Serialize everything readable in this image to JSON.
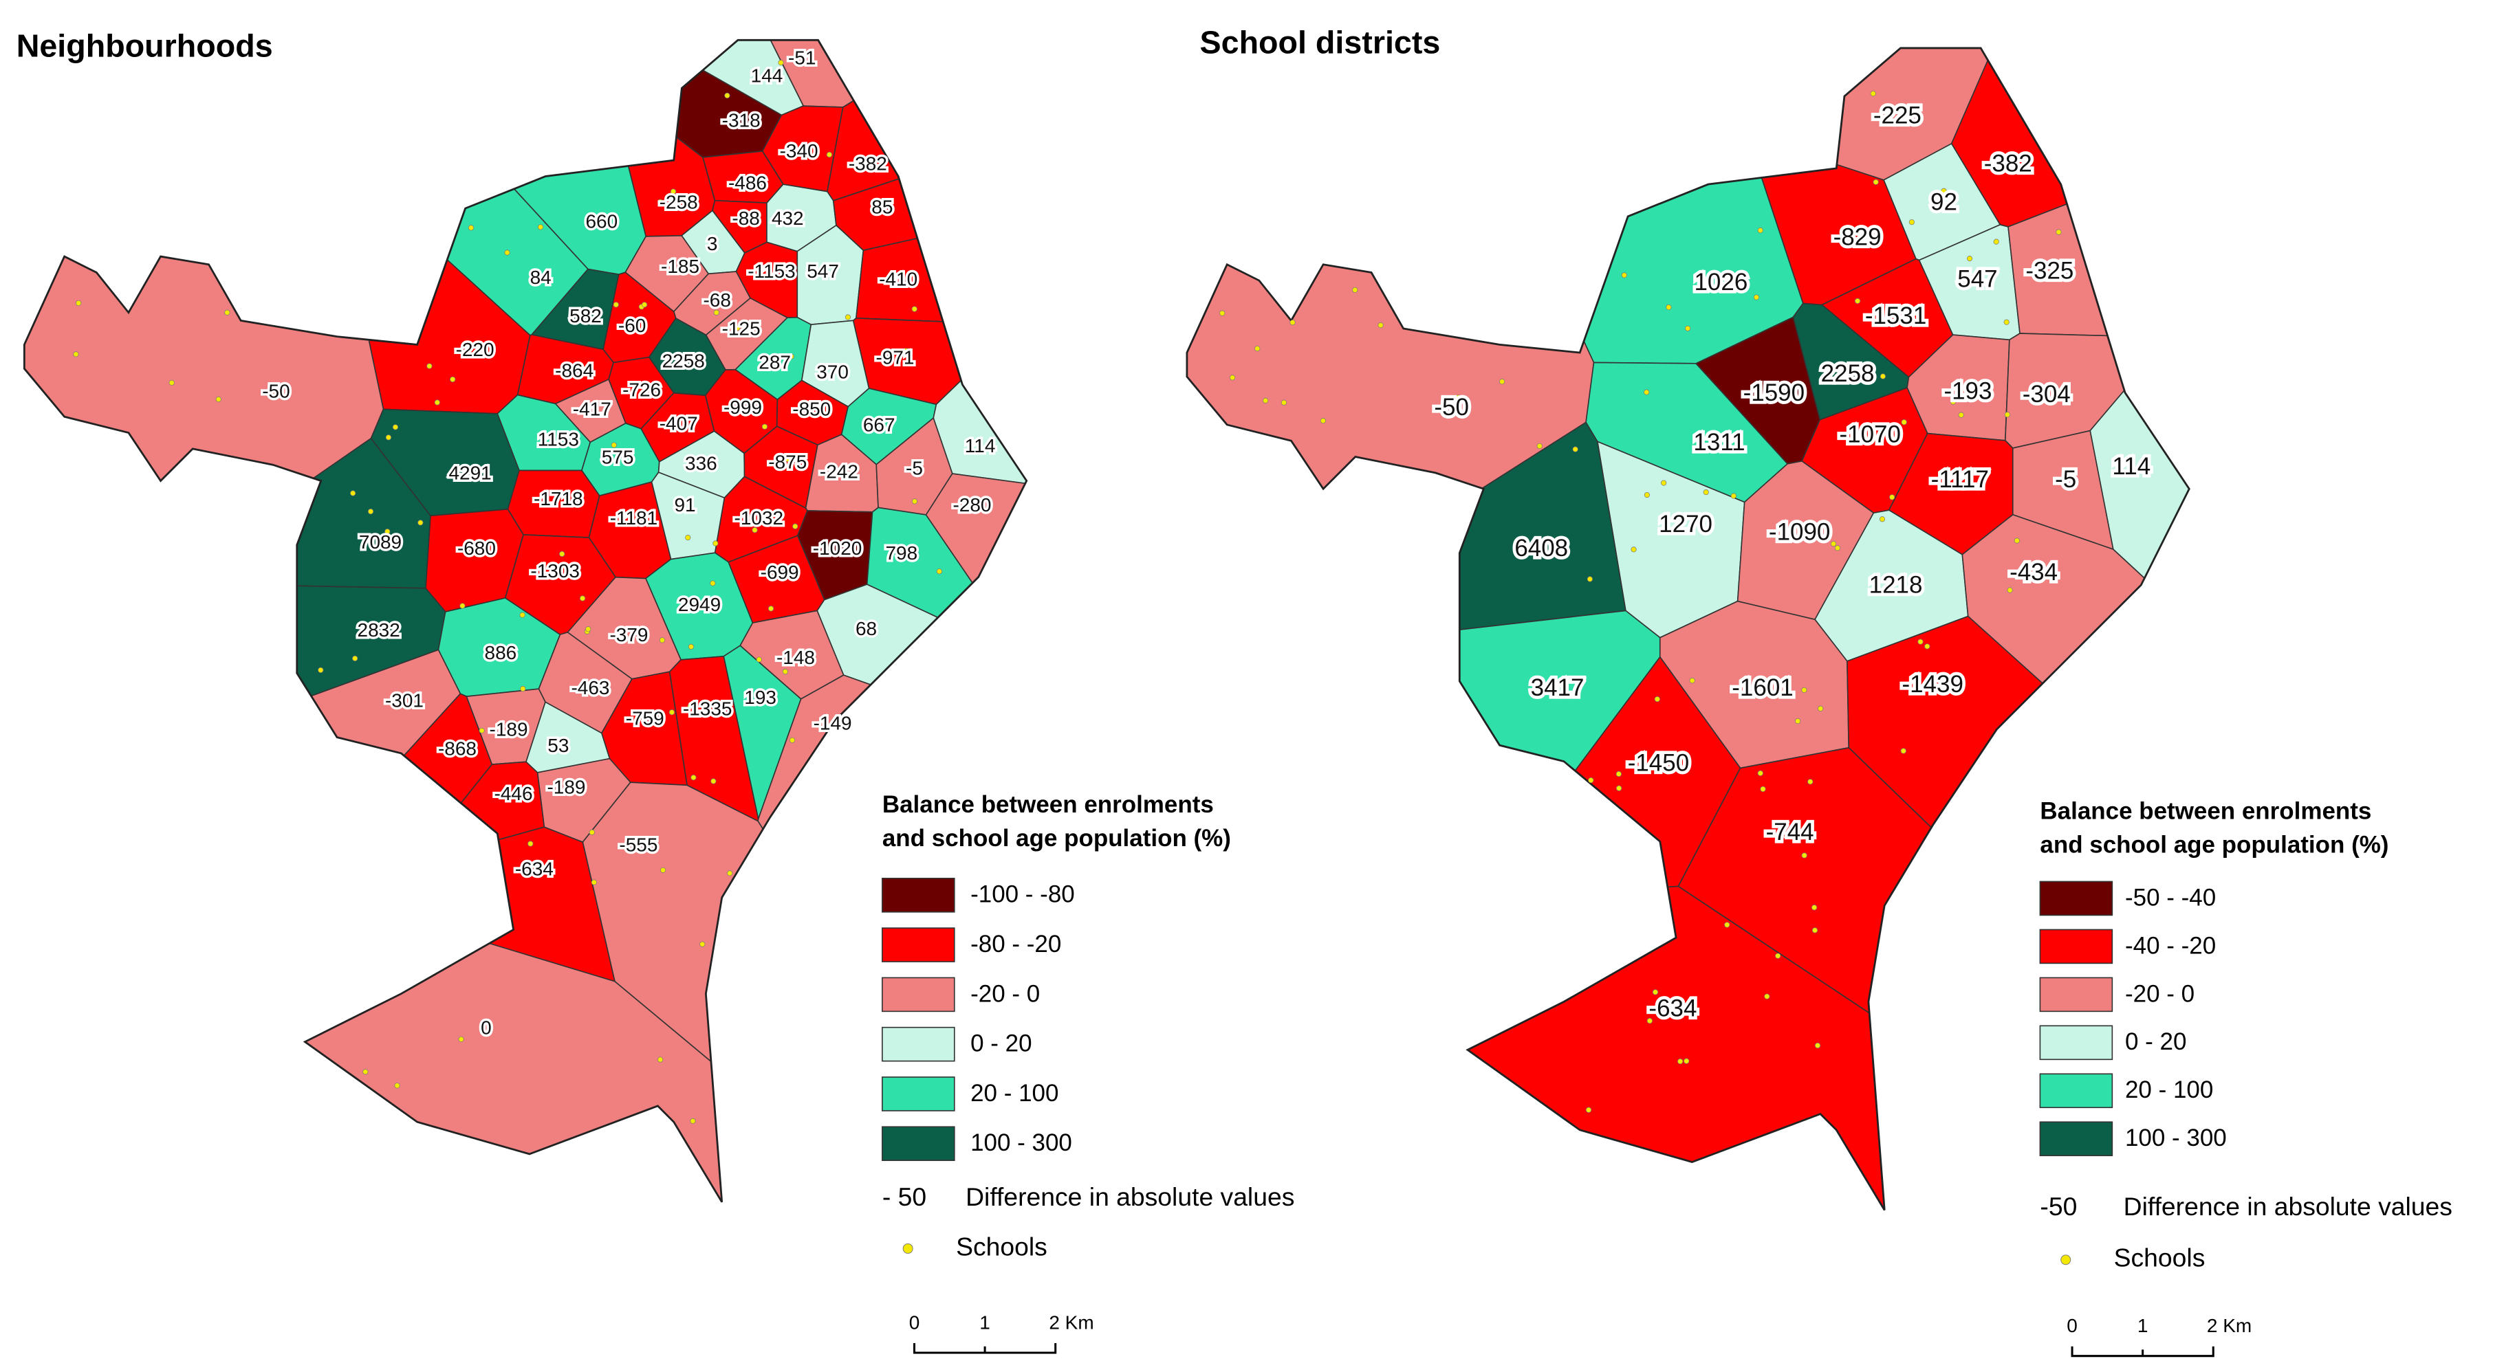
{
  "maps": [
    {
      "title": "Neighbourhoods",
      "regions": [
        {
          "label": -51,
          "color": "#f08080"
        },
        {
          "label": 144,
          "color": "#c8f5e6"
        },
        {
          "label": -318,
          "color": "#6b0000"
        },
        {
          "label": -340,
          "color": "#ff0000"
        },
        {
          "label": -382,
          "color": "#ff0000"
        },
        {
          "label": -486,
          "color": "#ff0000"
        },
        {
          "label": -258,
          "color": "#ff0000"
        },
        {
          "label": -88,
          "color": "#ff0000"
        },
        {
          "label": 432,
          "color": "#c8f5e6"
        },
        {
          "label": 85,
          "color": "#ff0000"
        },
        {
          "label": 660,
          "color": "#2fe0a8"
        },
        {
          "label": 3,
          "color": "#c8f5e6"
        },
        {
          "label": -185,
          "color": "#f08080"
        },
        {
          "label": -1153,
          "color": "#ff0000"
        },
        {
          "label": 547,
          "color": "#c8f5e6"
        },
        {
          "label": -410,
          "color": "#ff0000"
        },
        {
          "label": 84,
          "color": "#2fe0a8"
        },
        {
          "label": -68,
          "color": "#f08080"
        },
        {
          "label": 582,
          "color": "#0b5e47"
        },
        {
          "label": -60,
          "color": "#ff0000"
        },
        {
          "label": -125,
          "color": "#f08080"
        },
        {
          "label": -971,
          "color": "#ff0000"
        },
        {
          "label": -220,
          "color": "#ff0000"
        },
        {
          "label": -864,
          "color": "#ff0000"
        },
        {
          "label": 2258,
          "color": "#0b5e47"
        },
        {
          "label": 287,
          "color": "#2fe0a8"
        },
        {
          "label": 370,
          "color": "#c8f5e6"
        },
        {
          "label": -726,
          "color": "#ff0000"
        },
        {
          "label": -417,
          "color": "#f08080"
        },
        {
          "label": -999,
          "color": "#ff0000"
        },
        {
          "label": -850,
          "color": "#ff0000"
        },
        {
          "label": 667,
          "color": "#2fe0a8"
        },
        {
          "label": 114,
          "color": "#c8f5e6"
        },
        {
          "label": -50,
          "color": "#f08080"
        },
        {
          "label": 1153,
          "color": "#2fe0a8"
        },
        {
          "label": 575,
          "color": "#2fe0a8"
        },
        {
          "label": -407,
          "color": "#ff0000"
        },
        {
          "label": 336,
          "color": "#c8f5e6"
        },
        {
          "label": -875,
          "color": "#ff0000"
        },
        {
          "label": -242,
          "color": "#f08080"
        },
        {
          "label": -5,
          "color": "#f08080"
        },
        {
          "label": 4291,
          "color": "#0b5e47"
        },
        {
          "label": -1718,
          "color": "#ff0000"
        },
        {
          "label": 91,
          "color": "#c8f5e6"
        },
        {
          "label": -1181,
          "color": "#ff0000"
        },
        {
          "label": -1032,
          "color": "#ff0000"
        },
        {
          "label": -1020,
          "color": "#6b0000"
        },
        {
          "label": 798,
          "color": "#2fe0a8"
        },
        {
          "label": -280,
          "color": "#f08080"
        },
        {
          "label": 7089,
          "color": "#0b5e47"
        },
        {
          "label": -680,
          "color": "#ff0000"
        },
        {
          "label": -1303,
          "color": "#ff0000"
        },
        {
          "label": 2949,
          "color": "#2fe0a8"
        },
        {
          "label": -699,
          "color": "#ff0000"
        },
        {
          "label": 68,
          "color": "#c8f5e6"
        },
        {
          "label": 2832,
          "color": "#0b5e47"
        },
        {
          "label": -379,
          "color": "#f08080"
        },
        {
          "label": 886,
          "color": "#2fe0a8"
        },
        {
          "label": -148,
          "color": "#f08080"
        },
        {
          "label": -463,
          "color": "#f08080"
        },
        {
          "label": 193,
          "color": "#2fe0a8"
        },
        {
          "label": -301,
          "color": "#f08080"
        },
        {
          "label": -759,
          "color": "#ff0000"
        },
        {
          "label": -1335,
          "color": "#ff0000"
        },
        {
          "label": -149,
          "color": "#f08080"
        },
        {
          "label": -189,
          "color": "#f08080"
        },
        {
          "label": -868,
          "color": "#ff0000"
        },
        {
          "label": 53,
          "color": "#c8f5e6"
        },
        {
          "label": -189,
          "color": "#f08080"
        },
        {
          "label": -446,
          "color": "#ff0000"
        },
        {
          "label": -555,
          "color": "#f08080"
        },
        {
          "label": -634,
          "color": "#ff0000"
        },
        {
          "label": 0,
          "color": "#f08080"
        }
      ],
      "legend": {
        "title_lines": [
          "Balance between enrolments",
          "and school age population (%)"
        ],
        "classes": [
          {
            "label": "-100 - -80",
            "color": "#6b0000"
          },
          {
            "label": "-80 - -20",
            "color": "#ff0000"
          },
          {
            "label": "-20 - 0",
            "color": "#f08080"
          },
          {
            "label": "0 - 20",
            "color": "#c8f5e6"
          },
          {
            "label": "20 - 100",
            "color": "#2fe0a8"
          },
          {
            "label": "100 - 300",
            "color": "#0b5e47"
          }
        ],
        "difference_sample": "- 50",
        "difference_text": "Difference in absolute values",
        "schools": "Schools",
        "school_color": "#f5e800"
      },
      "scale": [
        "0",
        "1",
        "2 Km"
      ]
    },
    {
      "title": "School districts",
      "regions": [
        {
          "label": -225,
          "color": "#f08080"
        },
        {
          "label": -382,
          "color": "#ff0000"
        },
        {
          "label": 92,
          "color": "#c8f5e6"
        },
        {
          "label": -829,
          "color": "#ff0000"
        },
        {
          "label": 547,
          "color": "#c8f5e6"
        },
        {
          "label": -325,
          "color": "#f08080"
        },
        {
          "label": 1026,
          "color": "#2fe0a8"
        },
        {
          "label": -1531,
          "color": "#ff0000"
        },
        {
          "label": 2258,
          "color": "#0b5e47"
        },
        {
          "label": -1590,
          "color": "#6b0000"
        },
        {
          "label": -193,
          "color": "#f08080"
        },
        {
          "label": -304,
          "color": "#f08080"
        },
        {
          "label": -50,
          "color": "#f08080"
        },
        {
          "label": -1070,
          "color": "#ff0000"
        },
        {
          "label": 1311,
          "color": "#2fe0a8"
        },
        {
          "label": 114,
          "color": "#c8f5e6"
        },
        {
          "label": -1117,
          "color": "#ff0000"
        },
        {
          "label": -5,
          "color": "#f08080"
        },
        {
          "label": 1270,
          "color": "#c8f5e6"
        },
        {
          "label": -1090,
          "color": "#f08080"
        },
        {
          "label": 6408,
          "color": "#0b5e47"
        },
        {
          "label": 1218,
          "color": "#c8f5e6"
        },
        {
          "label": -434,
          "color": "#f08080"
        },
        {
          "label": 3417,
          "color": "#2fe0a8"
        },
        {
          "label": -1601,
          "color": "#f08080"
        },
        {
          "label": -1439,
          "color": "#ff0000"
        },
        {
          "label": -1450,
          "color": "#ff0000"
        },
        {
          "label": -744,
          "color": "#ff0000"
        },
        {
          "label": -634,
          "color": "#ff0000"
        }
      ],
      "legend": {
        "title_lines": [
          "Balance between enrolments",
          "and school age population (%)"
        ],
        "classes": [
          {
            "label": "-50 - -40",
            "color": "#6b0000"
          },
          {
            "label": "-40 - -20",
            "color": "#ff0000"
          },
          {
            "label": "-20 - 0",
            "color": "#f08080"
          },
          {
            "label": "0 - 20",
            "color": "#c8f5e6"
          },
          {
            "label": "20 - 100",
            "color": "#2fe0a8"
          },
          {
            "label": "100 - 300",
            "color": "#0b5e47"
          }
        ],
        "difference_sample": "-50",
        "difference_text": "Difference in absolute values",
        "schools": "Schools",
        "school_color": "#f5e800"
      },
      "scale": [
        "0",
        "1",
        "2 Km"
      ]
    }
  ]
}
